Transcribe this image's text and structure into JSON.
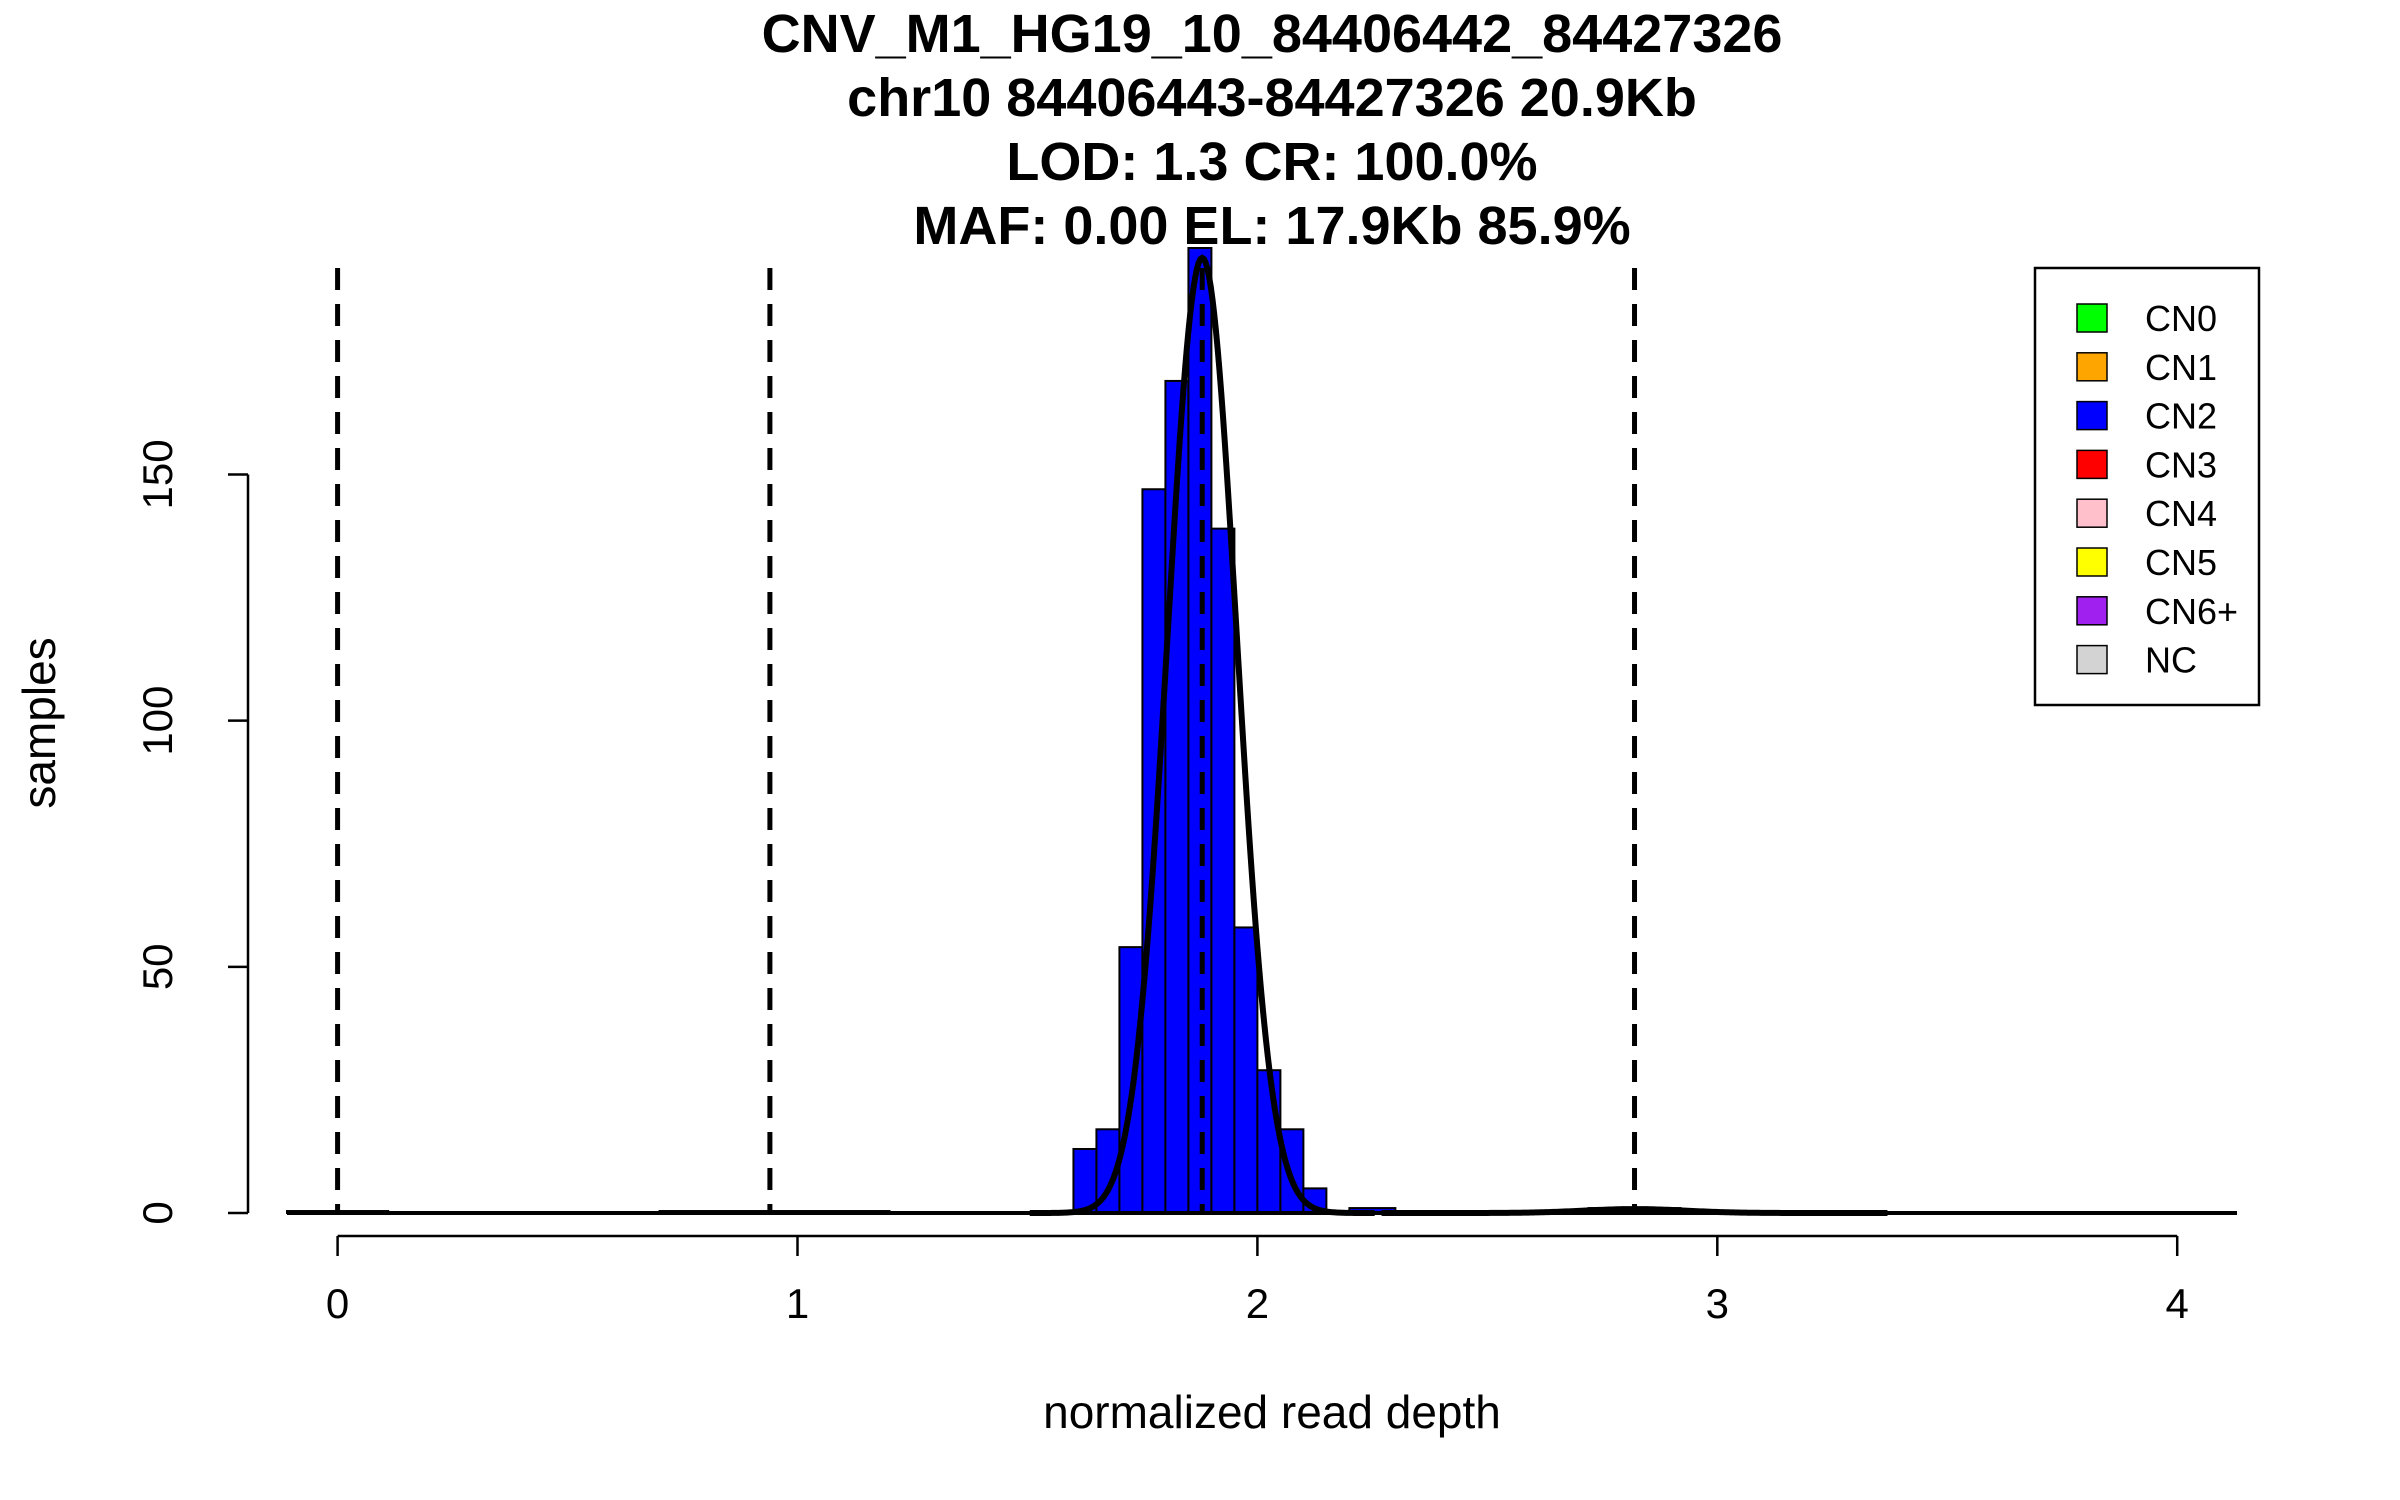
{
  "chart_data": {
    "type": "bar",
    "title_lines": [
      "CNV_M1_HG19_10_84406442_84427326",
      "chr10 84406443-84427326 20.9Kb",
      "LOD: 1.3 CR: 100.0%",
      "MAF: 0.00 EL: 17.9Kb 85.9%"
    ],
    "xlabel": "normalized read depth",
    "ylabel": "samples",
    "xlim": [
      -0.11,
      4.13
    ],
    "ylim": [
      0,
      196
    ],
    "x_ticks": [
      "0",
      "1",
      "2",
      "3",
      "4"
    ],
    "y_ticks": [
      "0",
      "50",
      "100",
      "150"
    ],
    "bin_width": 0.05,
    "bars": [
      {
        "x0": -0.11,
        "x1": 0.11,
        "value": 0.4,
        "color": "#0000FF"
      },
      {
        "x0": 0.7,
        "x1": 1.2,
        "value": 0.4,
        "color": "#0000FF"
      },
      {
        "x0": 1.55,
        "x1": 1.6,
        "value": 0.4,
        "color": "#0000FF"
      },
      {
        "x0": 1.6,
        "x1": 1.65,
        "value": 13,
        "color": "#0000FF"
      },
      {
        "x0": 1.65,
        "x1": 1.7,
        "value": 17,
        "color": "#0000FF"
      },
      {
        "x0": 1.7,
        "x1": 1.75,
        "value": 54,
        "color": "#0000FF"
      },
      {
        "x0": 1.75,
        "x1": 1.8,
        "value": 147,
        "color": "#0000FF"
      },
      {
        "x0": 1.8,
        "x1": 1.85,
        "value": 169,
        "color": "#0000FF"
      },
      {
        "x0": 1.85,
        "x1": 1.9,
        "value": 196,
        "color": "#0000FF"
      },
      {
        "x0": 1.9,
        "x1": 1.95,
        "value": 139,
        "color": "#0000FF"
      },
      {
        "x0": 1.95,
        "x1": 2.0,
        "value": 58,
        "color": "#0000FF"
      },
      {
        "x0": 2.0,
        "x1": 2.05,
        "value": 29,
        "color": "#0000FF"
      },
      {
        "x0": 2.05,
        "x1": 2.1,
        "value": 17,
        "color": "#0000FF"
      },
      {
        "x0": 2.1,
        "x1": 2.15,
        "value": 5,
        "color": "#0000FF"
      },
      {
        "x0": 2.2,
        "x1": 2.3,
        "value": 1,
        "color": "#0000FF"
      },
      {
        "x0": 2.4,
        "x1": 3.24,
        "value": 0.4,
        "color": "#0000FF"
      },
      {
        "x0": 2.72,
        "x1": 2.92,
        "value": 1,
        "color": "#0000FF"
      }
    ],
    "cutoffs": [
      0.0,
      0.94,
      1.88,
      2.82
    ],
    "curves": [
      {
        "mean": 1.88,
        "sd": 0.075,
        "peak": 194
      },
      {
        "mean": 2.82,
        "sd": 0.11,
        "peak": 0.8
      }
    ],
    "legend": {
      "position": "top-right",
      "entries": [
        {
          "label": "CN0",
          "color": "#00FF00"
        },
        {
          "label": "CN1",
          "color": "#FFA500"
        },
        {
          "label": "CN2",
          "color": "#0000FF"
        },
        {
          "label": "CN3",
          "color": "#FF0000"
        },
        {
          "label": "CN4",
          "color": "#FFC0CB"
        },
        {
          "label": "CN5",
          "color": "#FFFF00"
        },
        {
          "label": "CN6+",
          "color": "#A020F0"
        },
        {
          "label": "NC",
          "color": "#D3D3D3"
        }
      ]
    }
  }
}
